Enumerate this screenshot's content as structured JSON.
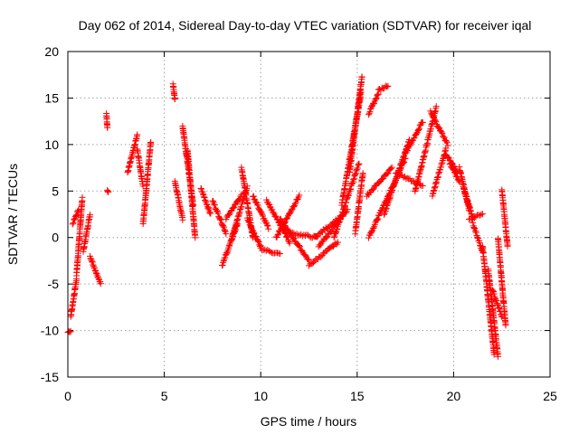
{
  "chart_data": {
    "type": "scatter",
    "title": "Day 062 of 2014, Sidereal Day-to-day VTEC variation (SDTVAR) for receiver iqal",
    "xlabel": "GPS time / hours",
    "ylabel": "SDTVAR / TECUs",
    "xlim": [
      0,
      25
    ],
    "ylim": [
      -15,
      20
    ],
    "xticks": [
      0,
      5,
      10,
      15,
      20,
      25
    ],
    "yticks": [
      -15,
      -10,
      -5,
      0,
      5,
      10,
      15,
      20
    ],
    "grid": true,
    "marker": "+",
    "series_color": "#ff0000",
    "segments": [
      {
        "x0": 0.0,
        "x1": 0.15,
        "y0": -10.2,
        "y1": -10.0
      },
      {
        "x0": 0.15,
        "x1": 0.45,
        "y0": -8.5,
        "y1": -4.5
      },
      {
        "x0": 0.25,
        "x1": 0.55,
        "y0": 1.5,
        "y1": 3.0
      },
      {
        "x0": 0.45,
        "x1": 0.75,
        "y0": -4.0,
        "y1": 4.2
      },
      {
        "x0": 0.8,
        "x1": 1.15,
        "y0": -1.5,
        "y1": 2.5
      },
      {
        "x0": 1.15,
        "x1": 1.7,
        "y0": -2.0,
        "y1": -5.0
      },
      {
        "x0": 2.0,
        "x1": 2.05,
        "y0": 13.3,
        "y1": 11.8
      },
      {
        "x0": 2.05,
        "x1": 2.1,
        "y0": 5.1,
        "y1": 4.8
      },
      {
        "x0": 3.1,
        "x1": 3.6,
        "y0": 7.0,
        "y1": 11.0
      },
      {
        "x0": 3.6,
        "x1": 3.9,
        "y0": 9.5,
        "y1": 5.5
      },
      {
        "x0": 3.9,
        "x1": 4.3,
        "y0": 1.5,
        "y1": 10.3
      },
      {
        "x0": 5.45,
        "x1": 5.55,
        "y0": 16.5,
        "y1": 14.8
      },
      {
        "x0": 5.55,
        "x1": 5.95,
        "y0": 6.0,
        "y1": 2.0
      },
      {
        "x0": 5.95,
        "x1": 6.5,
        "y0": 12.0,
        "y1": 3.5
      },
      {
        "x0": 6.2,
        "x1": 6.6,
        "y0": 9.5,
        "y1": 0.0
      },
      {
        "x0": 6.9,
        "x1": 7.4,
        "y0": 5.3,
        "y1": 2.5
      },
      {
        "x0": 7.5,
        "x1": 8.2,
        "y0": 4.0,
        "y1": 0.5
      },
      {
        "x0": 8.0,
        "x1": 8.8,
        "y0": -3.0,
        "y1": 1.5
      },
      {
        "x0": 8.2,
        "x1": 9.0,
        "y0": 2.0,
        "y1": 4.5
      },
      {
        "x0": 8.5,
        "x1": 9.3,
        "y0": 0.0,
        "y1": 5.5
      },
      {
        "x0": 9.0,
        "x1": 9.6,
        "y0": 7.5,
        "y1": 0.0
      },
      {
        "x0": 9.3,
        "x1": 10.0,
        "y0": 2.0,
        "y1": -1.0
      },
      {
        "x0": 9.6,
        "x1": 10.4,
        "y0": 4.5,
        "y1": 1.0
      },
      {
        "x0": 10.0,
        "x1": 11.0,
        "y0": -1.2,
        "y1": -1.8
      },
      {
        "x0": 10.3,
        "x1": 11.5,
        "y0": 4.0,
        "y1": -0.5
      },
      {
        "x0": 10.8,
        "x1": 12.0,
        "y0": 0.0,
        "y1": 4.5
      },
      {
        "x0": 11.0,
        "x1": 12.5,
        "y0": 2.0,
        "y1": -2.5
      },
      {
        "x0": 11.5,
        "x1": 12.9,
        "y0": 0.5,
        "y1": 0.0
      },
      {
        "x0": 12.5,
        "x1": 14.0,
        "y0": -3.0,
        "y1": -0.5
      },
      {
        "x0": 12.8,
        "x1": 14.3,
        "y0": 0.0,
        "y1": 2.5
      },
      {
        "x0": 13.0,
        "x1": 14.5,
        "y0": -1.0,
        "y1": 3.0
      },
      {
        "x0": 13.8,
        "x1": 15.1,
        "y0": 0.0,
        "y1": 8.0
      },
      {
        "x0": 14.2,
        "x1": 15.2,
        "y0": 3.5,
        "y1": 15.5
      },
      {
        "x0": 14.6,
        "x1": 15.25,
        "y0": 7.0,
        "y1": 17.3
      },
      {
        "x0": 14.9,
        "x1": 15.3,
        "y0": 0.5,
        "y1": 7.0
      },
      {
        "x0": 15.6,
        "x1": 16.1,
        "y0": 13.3,
        "y1": 15.5
      },
      {
        "x0": 16.1,
        "x1": 16.6,
        "y0": 15.8,
        "y1": 16.4
      },
      {
        "x0": 15.5,
        "x1": 16.8,
        "y0": 4.5,
        "y1": 7.5
      },
      {
        "x0": 15.6,
        "x1": 17.5,
        "y0": 0.0,
        "y1": 8.5
      },
      {
        "x0": 16.4,
        "x1": 17.7,
        "y0": 2.5,
        "y1": 10.5
      },
      {
        "x0": 17.5,
        "x1": 18.4,
        "y0": 9.0,
        "y1": 12.5
      },
      {
        "x0": 17.0,
        "x1": 18.4,
        "y0": 7.0,
        "y1": 5.5
      },
      {
        "x0": 18.0,
        "x1": 19.1,
        "y0": 5.0,
        "y1": 14.0
      },
      {
        "x0": 18.8,
        "x1": 19.7,
        "y0": 13.5,
        "y1": 10.0
      },
      {
        "x0": 18.9,
        "x1": 19.6,
        "y0": 4.5,
        "y1": 9.5
      },
      {
        "x0": 19.6,
        "x1": 20.2,
        "y0": 9.0,
        "y1": 7.0
      },
      {
        "x0": 19.8,
        "x1": 20.3,
        "y0": 8.0,
        "y1": 6.0
      },
      {
        "x0": 20.3,
        "x1": 20.8,
        "y0": 7.5,
        "y1": 3.0
      },
      {
        "x0": 20.5,
        "x1": 21.0,
        "y0": 5.5,
        "y1": 2.0
      },
      {
        "x0": 20.8,
        "x1": 21.5,
        "y0": 2.0,
        "y1": 2.5
      },
      {
        "x0": 21.0,
        "x1": 21.5,
        "y0": 1.5,
        "y1": -1.5
      },
      {
        "x0": 21.5,
        "x1": 22.1,
        "y0": -1.0,
        "y1": -12.5
      },
      {
        "x0": 21.8,
        "x1": 22.3,
        "y0": -3.5,
        "y1": -12.7
      },
      {
        "x0": 22.0,
        "x1": 22.5,
        "y0": -5.5,
        "y1": -8.5
      },
      {
        "x0": 22.3,
        "x1": 22.7,
        "y0": 0.0,
        "y1": -9.5
      },
      {
        "x0": 22.5,
        "x1": 22.8,
        "y0": 5.2,
        "y1": -1.0
      }
    ]
  }
}
